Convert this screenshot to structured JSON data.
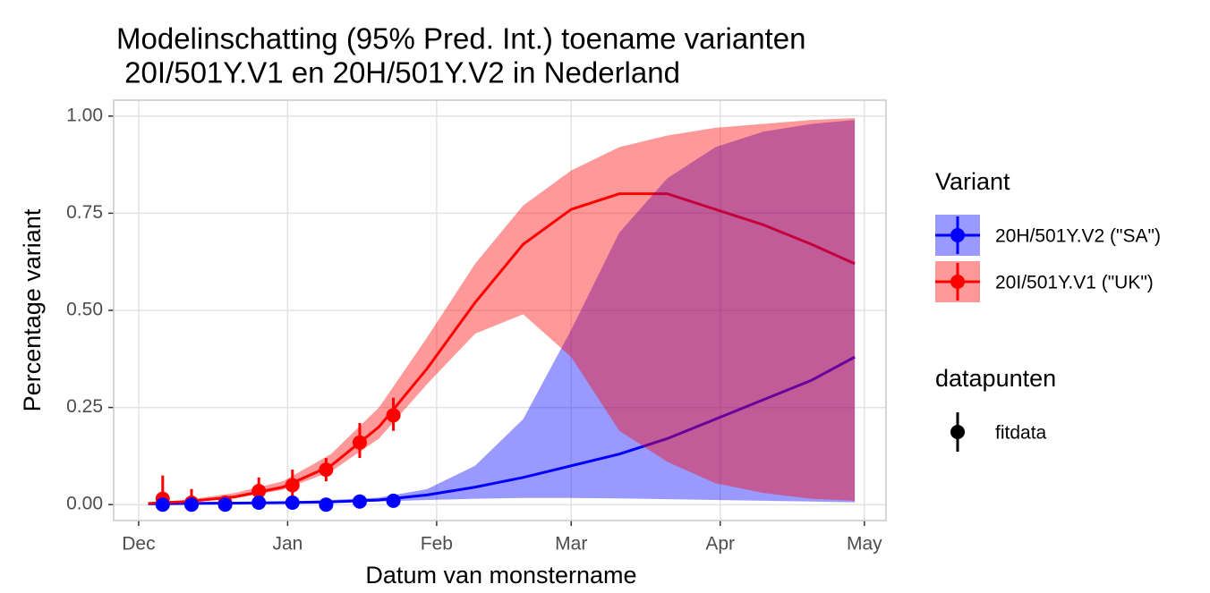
{
  "chart_data": {
    "type": "ribbon-line",
    "title": [
      "Modelinschatting (95% Pred. Int.) toename varianten",
      " 20I/501Y.V1 en 20H/501Y.V2 in Nederland"
    ],
    "x_label": "Datum van monstername",
    "y_label": "Percentage variant",
    "xlim": [
      -5.2,
      155.5
    ],
    "ylim": [
      -0.041,
      1.041
    ],
    "xticks": [
      {
        "value": 0,
        "label": "Dec"
      },
      {
        "value": 31,
        "label": "Jan"
      },
      {
        "value": 62,
        "label": "Feb"
      },
      {
        "value": 90,
        "label": "Mar"
      },
      {
        "value": 121,
        "label": "Apr"
      },
      {
        "value": 151,
        "label": "May"
      }
    ],
    "yticks": [
      {
        "value": 0,
        "label": "0.00"
      },
      {
        "value": 0.25,
        "label": "0.25"
      },
      {
        "value": 0.5,
        "label": "0.50"
      },
      {
        "value": 0.75,
        "label": "0.75"
      },
      {
        "value": 1,
        "label": "1.00"
      }
    ],
    "grid": true,
    "legend_title": "Variant",
    "points_legend": {
      "title": "datapunten",
      "label": "fitdata"
    },
    "x": [
      2,
      10,
      20,
      30,
      40,
      50,
      60,
      70,
      80,
      90,
      100,
      110,
      120,
      130,
      140,
      149
    ],
    "point_x": [
      5,
      11,
      18,
      25,
      32,
      39,
      46,
      53
    ],
    "series": [
      {
        "name": "20H/501Y.V2 (\"SA\")",
        "color": "#0000ff",
        "values": [
          0.002,
          0.003,
          0.004,
          0.005,
          0.007,
          0.012,
          0.025,
          0.045,
          0.07,
          0.1,
          0.13,
          0.17,
          0.22,
          0.27,
          0.32,
          0.38
        ],
        "lower": [
          0.001,
          0.002,
          0.003,
          0.004,
          0.005,
          0.008,
          0.012,
          0.015,
          0.017,
          0.017,
          0.016,
          0.014,
          0.012,
          0.01,
          0.008,
          0.006
        ],
        "upper": [
          0.003,
          0.004,
          0.006,
          0.008,
          0.012,
          0.018,
          0.04,
          0.1,
          0.22,
          0.45,
          0.7,
          0.84,
          0.92,
          0.96,
          0.98,
          0.99
        ],
        "point_values": [
          0,
          0,
          0,
          0.005,
          0.005,
          0,
          0.008,
          0.01
        ],
        "point_lower": [
          0,
          0,
          0,
          0,
          0,
          0,
          0,
          0.002
        ],
        "point_upper": [
          0.01,
          0.008,
          0.008,
          0.012,
          0.012,
          0.008,
          0.018,
          0.02
        ]
      },
      {
        "name": "20I/501Y.V1 (\"UK\")",
        "color": "#ff0000",
        "values": [
          0.003,
          0.008,
          0.02,
          0.045,
          0.1,
          0.2,
          0.35,
          0.52,
          0.67,
          0.76,
          0.8,
          0.8,
          0.76,
          0.72,
          0.67,
          0.62
        ],
        "lower": [
          0.002,
          0.006,
          0.016,
          0.038,
          0.085,
          0.17,
          0.31,
          0.44,
          0.49,
          0.38,
          0.19,
          0.11,
          0.055,
          0.03,
          0.015,
          0.01
        ],
        "upper": [
          0.005,
          0.012,
          0.03,
          0.06,
          0.13,
          0.25,
          0.43,
          0.62,
          0.77,
          0.86,
          0.92,
          0.95,
          0.97,
          0.98,
          0.99,
          0.995
        ],
        "point_values": [
          0.015,
          0.005,
          0.005,
          0.035,
          0.05,
          0.09,
          0.16,
          0.23
        ],
        "point_lower": [
          0,
          0,
          0,
          0.01,
          0.02,
          0.06,
          0.12,
          0.19
        ],
        "point_upper": [
          0.075,
          0.04,
          0.02,
          0.07,
          0.09,
          0.12,
          0.21,
          0.275
        ]
      }
    ]
  }
}
